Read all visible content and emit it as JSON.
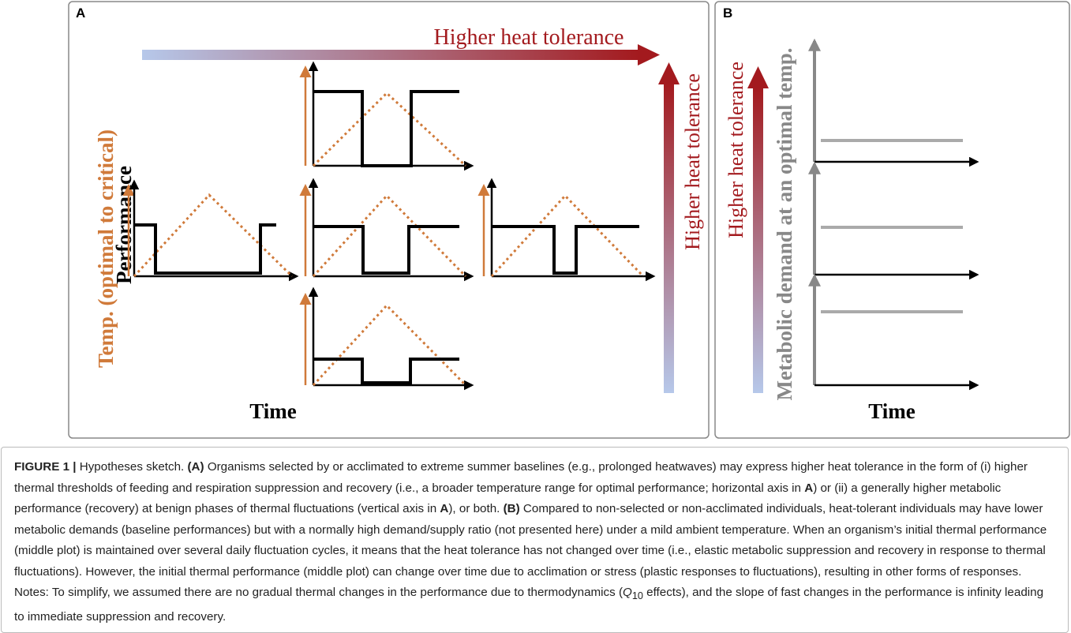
{
  "figure": {
    "panel_a": {
      "label": "A",
      "top_arrow": "Higher heat tolerance",
      "right_arrow": "Higher heat tolerance",
      "y_label_temp": "Temp. (optimal to critical)",
      "y_label_perf": "Performance",
      "x_label": "Time"
    },
    "panel_b": {
      "label": "B",
      "left_arrow": "Higher heat tolerance",
      "y_label": "Metabolic demand at an optimal temp.",
      "x_label": "Time"
    },
    "caption": {
      "segments": [
        "FIGURE 1 |",
        " Hypotheses sketch. ",
        "(A)",
        " Organisms selected by or acclimated to extreme summer baselines (e.g., prolonged heatwaves) may express higher heat tolerance in the form of (i) higher thermal thresholds of feeding and respiration suppression and recovery (i.e., a broader temperature range for optimal performance; horizontal axis in ",
        "A",
        ") or (ii) a generally higher metabolic performance (recovery) at benign phases of thermal fluctuations (vertical axis in ",
        "A",
        "), or both. ",
        "(B)",
        " Compared to non-selected or non-acclimated individuals, heat-tolerant individuals may have lower metabolic demands (baseline performances) but with a normally high demand/supply ratio (not presented here) under a mild ambient temperature. When an organism’s initial thermal performance (middle plot) is maintained over several daily fluctuation cycles, it means that the heat tolerance has not changed over time (i.e., elastic metabolic suppression and recovery in response to thermal fluctuations). However, the initial thermal performance (middle plot) can change over time due to acclimation or stress (plastic responses to fluctuations), resulting in other forms of responses. Notes: To simplify, we assumed there are no gradual thermal changes in the performance due to thermodynamics (",
        "Q",
        "10",
        " effects), and the slope of fast changes in the performance is infinity leading to immediate suppression and recovery."
      ]
    }
  }
}
